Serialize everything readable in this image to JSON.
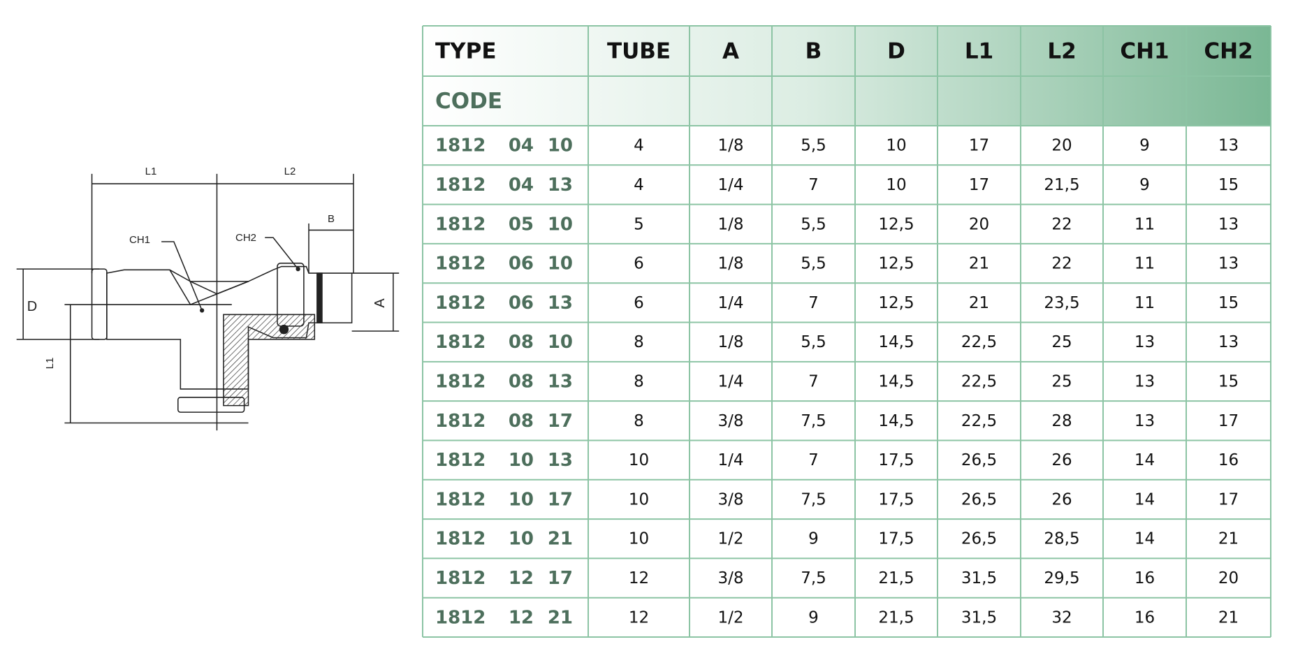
{
  "diagram": {
    "labels": [
      "L1",
      "L2",
      "B",
      "CH1",
      "CH2",
      "D",
      "A",
      "L1"
    ]
  },
  "table": {
    "header": [
      "TYPE",
      "TUBE",
      "A",
      "B",
      "D",
      "L1",
      "L2",
      "CH1",
      "CH2"
    ],
    "code_label": "CODE",
    "rows": [
      [
        "1812",
        "04",
        "10",
        "4",
        "1/8",
        "5,5",
        "10",
        "17",
        "20",
        "9",
        "13"
      ],
      [
        "1812",
        "04",
        "13",
        "4",
        "1/4",
        "7",
        "10",
        "17",
        "21,5",
        "9",
        "15"
      ],
      [
        "1812",
        "05",
        "10",
        "5",
        "1/8",
        "5,5",
        "12,5",
        "20",
        "22",
        "11",
        "13"
      ],
      [
        "1812",
        "06",
        "10",
        "6",
        "1/8",
        "5,5",
        "12,5",
        "21",
        "22",
        "11",
        "13"
      ],
      [
        "1812",
        "06",
        "13",
        "6",
        "1/4",
        "7",
        "12,5",
        "21",
        "23,5",
        "11",
        "15"
      ],
      [
        "1812",
        "08",
        "10",
        "8",
        "1/8",
        "5,5",
        "14,5",
        "22,5",
        "25",
        "13",
        "13"
      ],
      [
        "1812",
        "08",
        "13",
        "8",
        "1/4",
        "7",
        "14,5",
        "22,5",
        "25",
        "13",
        "15"
      ],
      [
        "1812",
        "08",
        "17",
        "8",
        "3/8",
        "7,5",
        "14,5",
        "22,5",
        "28",
        "13",
        "17"
      ],
      [
        "1812",
        "10",
        "13",
        "10",
        "1/4",
        "7",
        "17,5",
        "26,5",
        "26",
        "14",
        "16"
      ],
      [
        "1812",
        "10",
        "17",
        "10",
        "3/8",
        "7,5",
        "17,5",
        "26,5",
        "26",
        "14",
        "17"
      ],
      [
        "1812",
        "10",
        "21",
        "10",
        "1/2",
        "9",
        "17,5",
        "26,5",
        "28,5",
        "14",
        "21"
      ],
      [
        "1812",
        "12",
        "17",
        "12",
        "3/8",
        "7,5",
        "21,5",
        "31,5",
        "29,5",
        "16",
        "20"
      ],
      [
        "1812",
        "12",
        "21",
        "12",
        "1/2",
        "9",
        "21,5",
        "31,5",
        "32",
        "16",
        "21"
      ]
    ]
  }
}
